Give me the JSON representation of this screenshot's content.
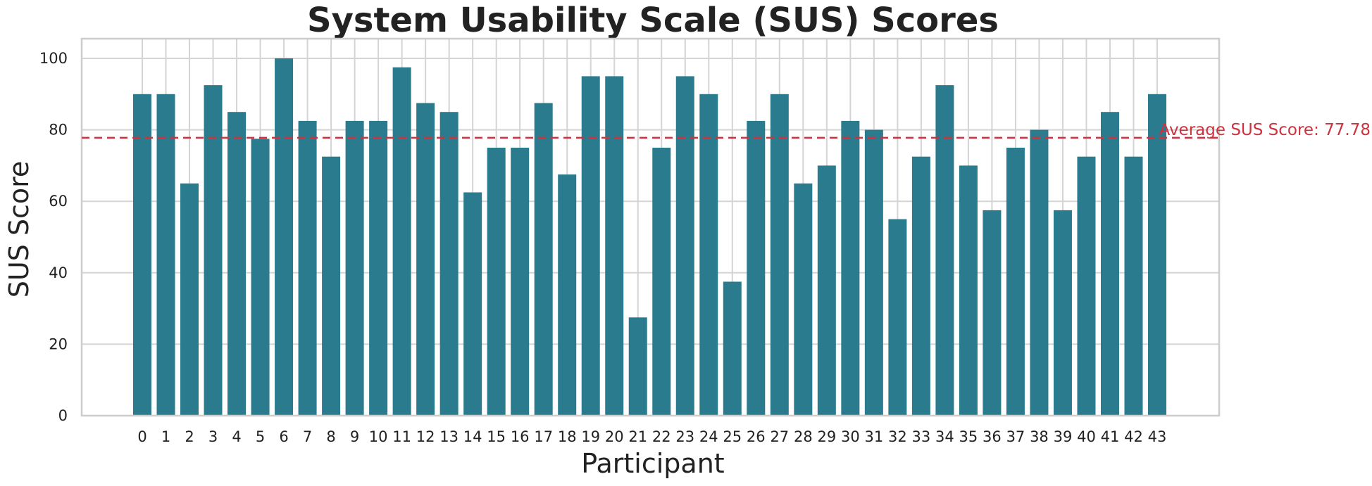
{
  "chart_data": {
    "type": "bar",
    "title": "System Usability Scale (SUS) Scores",
    "xlabel": "Participant",
    "ylabel": "SUS Score",
    "categories": [
      "0",
      "1",
      "2",
      "3",
      "4",
      "5",
      "6",
      "7",
      "8",
      "9",
      "10",
      "11",
      "12",
      "13",
      "14",
      "15",
      "16",
      "17",
      "18",
      "19",
      "20",
      "21",
      "22",
      "23",
      "24",
      "25",
      "26",
      "27",
      "28",
      "29",
      "30",
      "31",
      "32",
      "33",
      "34",
      "35",
      "36",
      "37",
      "38",
      "39",
      "40",
      "41",
      "42",
      "43"
    ],
    "values": [
      90,
      90,
      65,
      92.5,
      85,
      77.5,
      100,
      82.5,
      72.5,
      82.5,
      82.5,
      97.5,
      87.5,
      85,
      62.5,
      75,
      75,
      87.5,
      67.5,
      95,
      95,
      27.5,
      75,
      95,
      90,
      37.5,
      82.5,
      90,
      65,
      70,
      82.5,
      80,
      55,
      72.5,
      92.5,
      70,
      57.5,
      75,
      80,
      57.5,
      72.5,
      85,
      72.5,
      90
    ],
    "ylim": [
      0,
      100
    ],
    "yticks": [
      0,
      20,
      40,
      60,
      80,
      100
    ],
    "grid": true,
    "bar_color": "#2a7b8e",
    "average": {
      "value": 77.78,
      "label": "Average SUS Score: 77.78",
      "color": "#cc3340",
      "style": "dashed"
    }
  }
}
